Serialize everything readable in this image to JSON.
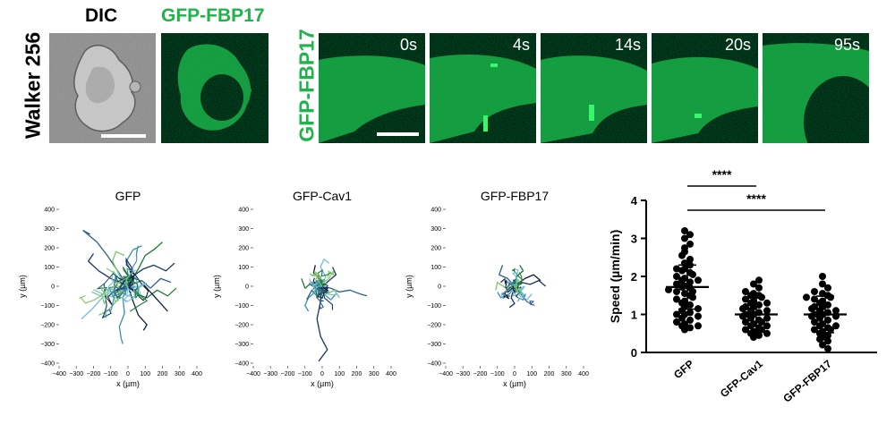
{
  "figure": {
    "dic_header": "DIC",
    "gfp_fbp17_header": "GFP-FBP17",
    "walker_label": "Walker 256",
    "timelapse_label": "GFP-FBP17",
    "time_points": [
      "0s",
      "4s",
      "14s",
      "20s",
      "95s"
    ]
  },
  "colors": {
    "gfp_green": "#1fb34a",
    "track_palette": [
      "#1a3560",
      "#2c5f8c",
      "#3d8fb0",
      "#6fbfd8",
      "#1f7a3a",
      "#7cc46a",
      "#0f1e3c"
    ]
  },
  "chart_data": [
    {
      "type": "line",
      "title": "GFP",
      "xlabel": "x (µm)",
      "ylabel": "y (µm)",
      "xlim": [
        -400,
        400
      ],
      "ylim": [
        -400,
        400
      ],
      "xticks": [
        "−400",
        "−300",
        "−200",
        "−100",
        "0",
        "100",
        "200",
        "300",
        "400"
      ],
      "yticks": [
        "400",
        "300",
        "200",
        "100",
        "0",
        "−100",
        "−200",
        "−300",
        "−400"
      ],
      "spread": 120,
      "series": [
        {
          "values": [
            [
              0,
              0
            ],
            [
              40,
              60
            ],
            [
              90,
              90
            ],
            [
              150,
              110
            ],
            [
              220,
              80
            ],
            [
              270,
              120
            ]
          ]
        },
        {
          "values": [
            [
              0,
              0
            ],
            [
              -60,
              80
            ],
            [
              -120,
              160
            ],
            [
              -180,
              230
            ],
            [
              -260,
              290
            ],
            [
              -220,
              270
            ]
          ]
        },
        {
          "values": [
            [
              0,
              0
            ],
            [
              -30,
              -60
            ],
            [
              -20,
              -140
            ],
            [
              -50,
              -210
            ],
            [
              -40,
              -270
            ],
            [
              -30,
              -300
            ]
          ]
        },
        {
          "values": [
            [
              0,
              0
            ],
            [
              -80,
              -20
            ],
            [
              -150,
              -60
            ],
            [
              -210,
              -120
            ],
            [
              -270,
              -170
            ]
          ]
        },
        {
          "values": [
            [
              0,
              0
            ],
            [
              50,
              -40
            ],
            [
              110,
              -60
            ],
            [
              170,
              -20
            ],
            [
              230,
              -50
            ],
            [
              280,
              -10
            ]
          ]
        },
        {
          "values": [
            [
              0,
              0
            ],
            [
              -40,
              40
            ],
            [
              -90,
              130
            ],
            [
              -70,
              180
            ],
            [
              -20,
              160
            ]
          ]
        },
        {
          "values": [
            [
              0,
              0
            ],
            [
              30,
              -80
            ],
            [
              60,
              -150
            ],
            [
              110,
              -200
            ],
            [
              90,
              -230
            ]
          ]
        },
        {
          "values": [
            [
              0,
              0
            ],
            [
              -100,
              40
            ],
            [
              -170,
              80
            ],
            [
              -230,
              130
            ],
            [
              -200,
              170
            ]
          ]
        },
        {
          "values": [
            [
              0,
              0
            ],
            [
              80,
              30
            ],
            [
              130,
              -10
            ],
            [
              190,
              40
            ],
            [
              250,
              20
            ]
          ]
        },
        {
          "values": [
            [
              0,
              0
            ],
            [
              20,
              70
            ],
            [
              -10,
              130
            ],
            [
              30,
              190
            ],
            [
              80,
              210
            ]
          ]
        },
        {
          "values": [
            [
              0,
              0
            ],
            [
              -50,
              -30
            ],
            [
              -110,
              -10
            ],
            [
              -160,
              -50
            ],
            [
              -210,
              -30
            ]
          ]
        },
        {
          "values": [
            [
              0,
              0
            ],
            [
              60,
              90
            ],
            [
              100,
              160
            ],
            [
              150,
              190
            ],
            [
              200,
              230
            ]
          ]
        },
        {
          "values": [
            [
              0,
              0
            ],
            [
              -70,
              -80
            ],
            [
              -120,
              -130
            ],
            [
              -170,
              -150
            ]
          ]
        },
        {
          "values": [
            [
              0,
              0
            ],
            [
              40,
              -20
            ],
            [
              90,
              10
            ],
            [
              140,
              -40
            ],
            [
              190,
              -90
            ],
            [
              230,
              -130
            ]
          ]
        }
      ]
    },
    {
      "type": "line",
      "title": "GFP-Cav1",
      "xlabel": "x (µm)",
      "ylabel": "y (µm)",
      "xlim": [
        -400,
        400
      ],
      "ylim": [
        -400,
        400
      ],
      "xticks": [
        "−400",
        "−300",
        "−200",
        "−100",
        "0",
        "100",
        "200",
        "300",
        "400"
      ],
      "yticks": [
        "400",
        "300",
        "200",
        "100",
        "0",
        "−100",
        "−200",
        "−300",
        "−400"
      ],
      "spread": 70,
      "series": [
        {
          "values": [
            [
              0,
              0
            ],
            [
              -10,
              -80
            ],
            [
              -30,
              -170
            ],
            [
              -10,
              -260
            ],
            [
              30,
              -330
            ],
            [
              -20,
              -390
            ]
          ]
        },
        {
          "values": [
            [
              0,
              0
            ],
            [
              50,
              -10
            ],
            [
              100,
              -30
            ],
            [
              160,
              -20
            ],
            [
              220,
              -40
            ],
            [
              260,
              -50
            ]
          ]
        },
        {
          "values": [
            [
              0,
              0
            ],
            [
              -40,
              -30
            ],
            [
              -80,
              -60
            ],
            [
              -100,
              -100
            ],
            [
              -80,
              -130
            ]
          ]
        },
        {
          "values": [
            [
              0,
              0
            ],
            [
              20,
              50
            ],
            [
              -10,
              100
            ],
            [
              10,
              140
            ],
            [
              40,
              120
            ]
          ]
        },
        {
          "values": [
            [
              0,
              0
            ],
            [
              -60,
              20
            ],
            [
              -100,
              -10
            ],
            [
              -120,
              40
            ]
          ]
        },
        {
          "values": [
            [
              0,
              0
            ],
            [
              30,
              -40
            ],
            [
              70,
              -20
            ],
            [
              100,
              -60
            ]
          ]
        },
        {
          "values": [
            [
              0,
              0
            ],
            [
              -20,
              40
            ],
            [
              -50,
              70
            ],
            [
              -40,
              110
            ]
          ]
        },
        {
          "values": [
            [
              0,
              0
            ],
            [
              40,
              30
            ],
            [
              80,
              60
            ],
            [
              60,
              100
            ]
          ]
        },
        {
          "values": [
            [
              0,
              0
            ],
            [
              -30,
              -50
            ],
            [
              -60,
              -20
            ],
            [
              -90,
              -70
            ]
          ]
        },
        {
          "values": [
            [
              0,
              0
            ],
            [
              10,
              -40
            ],
            [
              50,
              -70
            ],
            [
              80,
              -40
            ]
          ]
        }
      ]
    },
    {
      "type": "line",
      "title": "GFP-FBP17",
      "xlabel": "x (µm)",
      "ylabel": "y (µm)",
      "xlim": [
        -400,
        400
      ],
      "ylim": [
        -400,
        400
      ],
      "xticks": [
        "−400",
        "−300",
        "−200",
        "−100",
        "0",
        "100",
        "200",
        "300",
        "400"
      ],
      "yticks": [
        "400",
        "300",
        "200",
        "100",
        "0",
        "−100",
        "−200",
        "−300",
        "−400"
      ],
      "spread": 55,
      "series": [
        {
          "values": [
            [
              0,
              0
            ],
            [
              40,
              20
            ],
            [
              90,
              10
            ],
            [
              140,
              30
            ],
            [
              180,
              0
            ]
          ]
        },
        {
          "values": [
            [
              0,
              0
            ],
            [
              -40,
              40
            ],
            [
              -90,
              60
            ],
            [
              -70,
              110
            ]
          ]
        },
        {
          "values": [
            [
              0,
              0
            ],
            [
              -30,
              -40
            ],
            [
              -80,
              -60
            ],
            [
              -100,
              -30
            ]
          ]
        },
        {
          "values": [
            [
              0,
              0
            ],
            [
              30,
              -50
            ],
            [
              70,
              -70
            ],
            [
              100,
              -40
            ]
          ]
        },
        {
          "values": [
            [
              0,
              0
            ],
            [
              10,
              50
            ],
            [
              50,
              80
            ],
            [
              30,
              110
            ]
          ]
        },
        {
          "values": [
            [
              0,
              0
            ],
            [
              -50,
              -10
            ],
            [
              -100,
              20
            ],
            [
              -110,
              -20
            ]
          ]
        },
        {
          "values": [
            [
              0,
              0
            ],
            [
              60,
              40
            ],
            [
              110,
              60
            ],
            [
              150,
              30
            ]
          ]
        },
        {
          "values": [
            [
              0,
              0
            ],
            [
              -20,
              -60
            ],
            [
              0,
              -90
            ],
            [
              -30,
              -110
            ]
          ]
        }
      ]
    },
    {
      "type": "scatter",
      "xlabel": "",
      "ylabel": "Speed (µm/min)",
      "ylim": [
        0,
        4
      ],
      "yticks": [
        "0",
        "1",
        "2",
        "3",
        "4"
      ],
      "categories": [
        "GFP",
        "GFP-Cav1",
        "GFP-FBP17"
      ],
      "series": [
        {
          "name": "GFP",
          "mean": 1.72,
          "sd": 0.58,
          "values": [
            0.6,
            0.65,
            0.7,
            0.75,
            0.8,
            0.85,
            0.9,
            0.95,
            1.0,
            1.05,
            1.1,
            1.15,
            1.2,
            1.3,
            1.35,
            1.4,
            1.45,
            1.5,
            1.55,
            1.6,
            1.65,
            1.7,
            1.72,
            1.75,
            1.8,
            1.85,
            1.9,
            1.95,
            2.0,
            2.05,
            2.1,
            2.15,
            2.2,
            2.3,
            2.35,
            2.45,
            2.55,
            2.65,
            2.75,
            2.85,
            3.0,
            3.1,
            3.2,
            0.7,
            1.0,
            1.25,
            1.6,
            1.9,
            2.2
          ]
        },
        {
          "name": "GFP-Cav1",
          "mean": 1.0,
          "sd": 0.45,
          "values": [
            0.4,
            0.45,
            0.5,
            0.55,
            0.6,
            0.65,
            0.7,
            0.75,
            0.8,
            0.85,
            0.9,
            0.95,
            1.0,
            1.0,
            1.05,
            1.1,
            1.15,
            1.2,
            1.25,
            1.3,
            1.35,
            1.4,
            1.45,
            1.5,
            1.55,
            1.6,
            1.7,
            1.8,
            1.9,
            0.5,
            0.7,
            0.9,
            1.1,
            1.3,
            1.5,
            0.6,
            0.8,
            1.2
          ]
        },
        {
          "name": "GFP-FBP17",
          "mean": 1.0,
          "sd": 0.48,
          "values": [
            0.1,
            0.2,
            0.3,
            0.35,
            0.4,
            0.5,
            0.55,
            0.6,
            0.65,
            0.7,
            0.75,
            0.8,
            0.85,
            0.9,
            0.95,
            1.0,
            1.0,
            1.05,
            1.1,
            1.15,
            1.2,
            1.25,
            1.3,
            1.35,
            1.4,
            1.45,
            1.5,
            1.55,
            1.6,
            1.7,
            1.8,
            2.0,
            0.45,
            0.7,
            0.95,
            1.2,
            1.45,
            0.6,
            1.1
          ]
        }
      ],
      "significance": [
        {
          "label": "****",
          "from": "GFP",
          "to": "GFP-Cav1"
        },
        {
          "label": "****",
          "from": "GFP",
          "to": "GFP-FBP17"
        }
      ]
    }
  ]
}
